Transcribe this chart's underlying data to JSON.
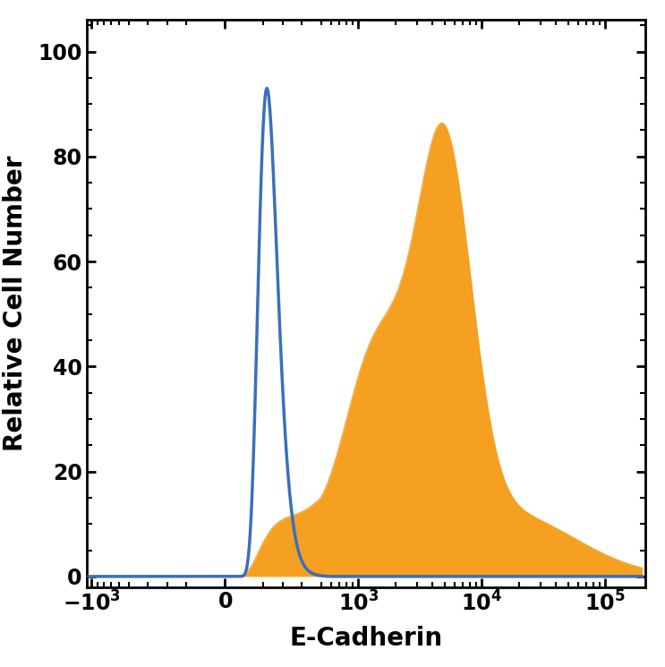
{
  "title": "",
  "xlabel": "E-Cadherin",
  "ylabel": "Relative Cell Number",
  "xlabel_fontsize": 20,
  "ylabel_fontsize": 20,
  "tick_fontsize": 17,
  "ylim": [
    -2,
    106
  ],
  "yticks": [
    0,
    20,
    40,
    60,
    80,
    100
  ],
  "blue_color": "#3b6fbd",
  "orange_color": "#f5a020",
  "blue_linewidth": 2.5,
  "background_color": "#ffffff",
  "linthresh": 500,
  "linscale": 0.7
}
